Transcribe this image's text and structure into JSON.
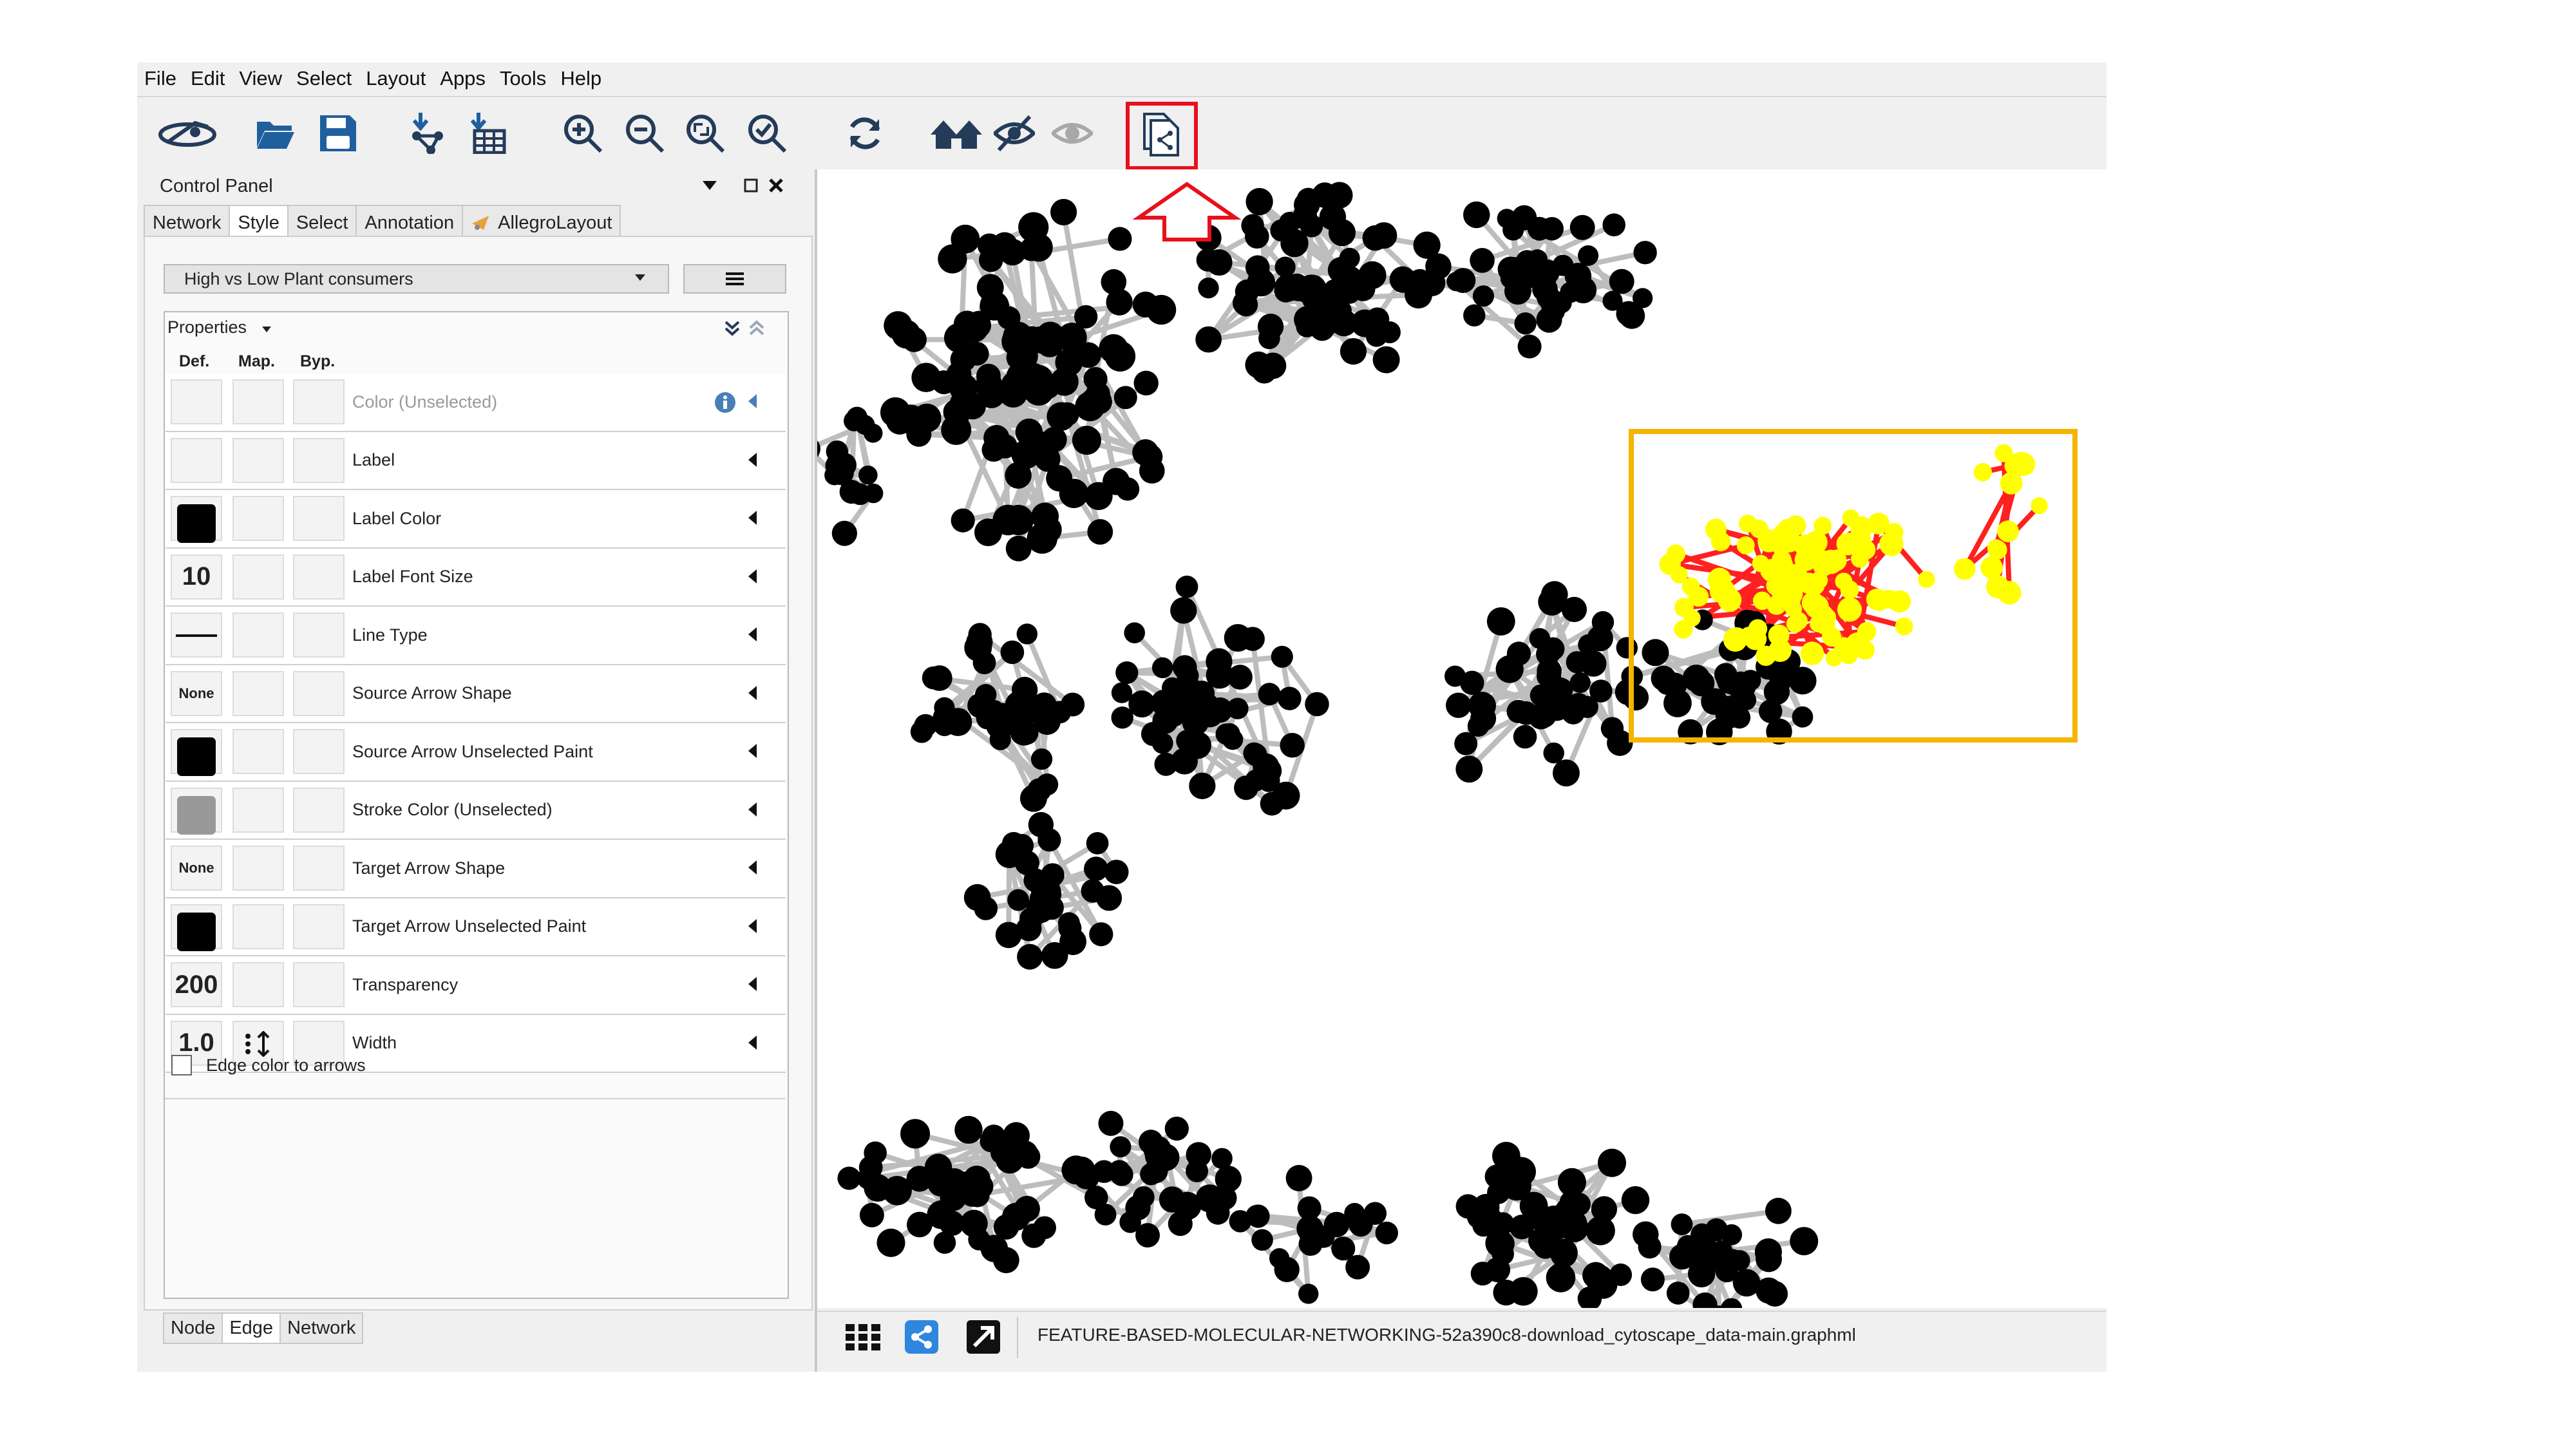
{
  "menu": [
    "File",
    "Edit",
    "View",
    "Select",
    "Layout",
    "Apps",
    "Tools",
    "Help"
  ],
  "toolbar": {
    "icons": [
      "new-network-icon",
      "open-folder-icon",
      "save-icon",
      "import-network-icon",
      "import-table-icon",
      "zoom-in-icon",
      "zoom-out-icon",
      "zoom-fit-icon",
      "zoom-selected-icon",
      "refresh-icon",
      "home-icon",
      "hide-icon",
      "show-icon",
      "export-network-icon"
    ],
    "highlighted_icon": "export-network-icon",
    "highlight_color": "#e8101c"
  },
  "control_panel": {
    "title": "Control Panel",
    "tabs": [
      "Network",
      "Style",
      "Select",
      "Annotation",
      "AllegroLayout"
    ],
    "active_tab": "Style",
    "style_name": "High vs Low Plant consumers",
    "properties_label": "Properties",
    "columns": [
      "Def.",
      "Map.",
      "Byp."
    ],
    "rows": [
      {
        "label": "Color (Unselected)",
        "def": "",
        "def_color": "",
        "map": "",
        "info": true
      },
      {
        "label": "Label",
        "def": "",
        "def_color": "",
        "map": ""
      },
      {
        "label": "Label Color",
        "def": "",
        "def_color": "#000000",
        "map": ""
      },
      {
        "label": "Label Font Size",
        "def": "10",
        "def_color": "",
        "map": ""
      },
      {
        "label": "Line Type",
        "def": "line",
        "def_color": "",
        "map": ""
      },
      {
        "label": "Source Arrow Shape",
        "def": "None",
        "def_color": "",
        "map": ""
      },
      {
        "label": "Source Arrow Unselected Paint",
        "def": "",
        "def_color": "#000000",
        "map": ""
      },
      {
        "label": "Stroke Color (Unselected)",
        "def": "",
        "def_color": "#999999",
        "map": ""
      },
      {
        "label": "Target Arrow Shape",
        "def": "None",
        "def_color": "",
        "map": ""
      },
      {
        "label": "Target Arrow Unselected Paint",
        "def": "",
        "def_color": "#000000",
        "map": ""
      },
      {
        "label": "Transparency",
        "def": "200",
        "def_color": "",
        "map": ""
      },
      {
        "label": "Width",
        "def": "1.0",
        "def_color": "",
        "map": "continuous-mapping-icon"
      }
    ],
    "edge_color_to_arrows": "Edge color to arrows",
    "bottom_tabs": [
      "Node",
      "Edge",
      "Network"
    ],
    "active_bottom_tab": "Edge"
  },
  "status_bar": {
    "filename": "FEATURE-BASED-MOLECULAR-NETWORKING-52a390c8-download_cytoscape_data-main.graphml"
  },
  "colors": {
    "highlight_box": "#f4b400",
    "selected_node": "#ffff00",
    "selected_edge": "#ff2020",
    "node": "#000000",
    "edge": "#bdbdbd",
    "info_icon": "#4a7eb5",
    "share_icon": "#2e86de"
  }
}
